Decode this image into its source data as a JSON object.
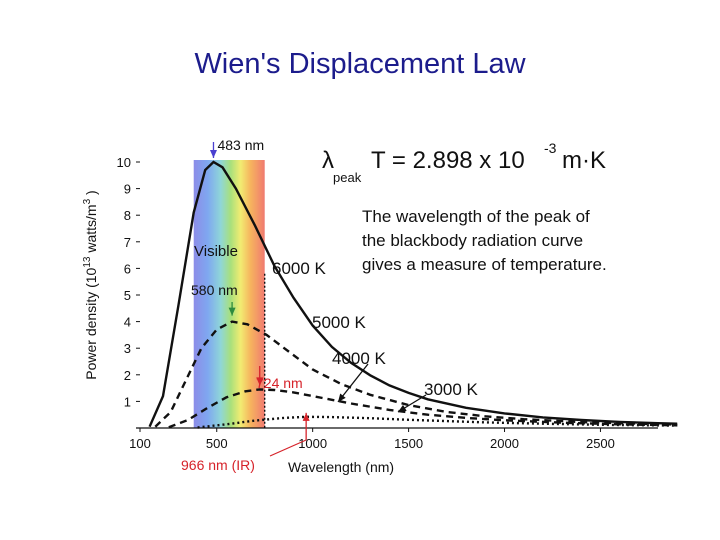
{
  "slide": {
    "title": "Wien's Displacement Law"
  },
  "colors": {
    "title": "#1c1c8c",
    "curve": "#111111",
    "peak_arrow": "#4a3fd0",
    "green_arrow": "#2e8b3e",
    "red_marker": "#d6232a"
  },
  "formula": {
    "lambda": "λ",
    "subscript": "peak",
    "equation": "T = 2.898  x 10",
    "exponent": "-3",
    "unit": "m·K"
  },
  "annotation": {
    "lines": [
      "The wavelength of the peak of",
      "the blackbody radiation curve",
      "gives a measure of temperature."
    ]
  },
  "chart_data": {
    "type": "line",
    "xlabel": "Wavelength (nm)",
    "ylabel": "Power density (10",
    "ylabel_sup": "13",
    "ylabel_mid": " watts/m",
    "ylabel_sup2": "3",
    "ylabel_end": " )",
    "x_ticks": [
      100,
      500,
      1000,
      1500,
      2000,
      2500
    ],
    "y_ticks": [
      1,
      2,
      3,
      4,
      5,
      6,
      7,
      8,
      9,
      10
    ],
    "xlim": [
      100,
      2900
    ],
    "ylim": [
      0,
      10.5
    ],
    "visible_band_label": "Visible",
    "visible_band_nm": [
      380,
      750
    ],
    "series": [
      {
        "name": "6000 K",
        "style": "solid",
        "peak_label": "483 nm",
        "peak_nm": 483,
        "points": [
          [
            150,
            0.05
          ],
          [
            220,
            1.2
          ],
          [
            300,
            4.6
          ],
          [
            380,
            8.1
          ],
          [
            440,
            9.7
          ],
          [
            483,
            10.0
          ],
          [
            530,
            9.8
          ],
          [
            600,
            9.0
          ],
          [
            700,
            7.6
          ],
          [
            800,
            6.1
          ],
          [
            900,
            4.9
          ],
          [
            1000,
            3.85
          ],
          [
            1100,
            3.05
          ],
          [
            1200,
            2.45
          ],
          [
            1300,
            1.98
          ],
          [
            1400,
            1.6
          ],
          [
            1500,
            1.32
          ],
          [
            1600,
            1.08
          ],
          [
            1800,
            0.76
          ],
          [
            2000,
            0.55
          ],
          [
            2200,
            0.4
          ],
          [
            2400,
            0.3
          ],
          [
            2600,
            0.23
          ],
          [
            2800,
            0.18
          ],
          [
            2900,
            0.16
          ]
        ]
      },
      {
        "name": "5000 K",
        "style": "dash",
        "peak_label": "580 nm",
        "peak_nm": 580,
        "points": [
          [
            180,
            0.05
          ],
          [
            260,
            0.6
          ],
          [
            340,
            1.8
          ],
          [
            420,
            3.0
          ],
          [
            500,
            3.7
          ],
          [
            580,
            4.0
          ],
          [
            660,
            3.9
          ],
          [
            760,
            3.5
          ],
          [
            880,
            2.85
          ],
          [
            1000,
            2.2
          ],
          [
            1150,
            1.65
          ],
          [
            1300,
            1.25
          ],
          [
            1500,
            0.86
          ],
          [
            1700,
            0.6
          ],
          [
            1900,
            0.44
          ],
          [
            2100,
            0.33
          ],
          [
            2400,
            0.22
          ],
          [
            2700,
            0.16
          ],
          [
            2900,
            0.13
          ]
        ]
      },
      {
        "name": "4000 K",
        "style": "dash",
        "peak_label": "724 nm",
        "peak_nm": 724,
        "points": [
          [
            250,
            0.03
          ],
          [
            350,
            0.3
          ],
          [
            450,
            0.75
          ],
          [
            550,
            1.15
          ],
          [
            650,
            1.38
          ],
          [
            724,
            1.45
          ],
          [
            800,
            1.43
          ],
          [
            900,
            1.34
          ],
          [
            1000,
            1.2
          ],
          [
            1200,
            0.92
          ],
          [
            1400,
            0.68
          ],
          [
            1600,
            0.5
          ],
          [
            1800,
            0.38
          ],
          [
            2000,
            0.29
          ],
          [
            2300,
            0.2
          ],
          [
            2600,
            0.14
          ],
          [
            2900,
            0.1
          ]
        ]
      },
      {
        "name": "3000 K",
        "style": "dot",
        "peak_label": "966 nm (IR)",
        "peak_nm": 966,
        "points": [
          [
            400,
            0.02
          ],
          [
            550,
            0.14
          ],
          [
            700,
            0.28
          ],
          [
            850,
            0.38
          ],
          [
            966,
            0.42
          ],
          [
            1100,
            0.41
          ],
          [
            1300,
            0.37
          ],
          [
            1500,
            0.31
          ],
          [
            1700,
            0.26
          ],
          [
            1900,
            0.21
          ],
          [
            2200,
            0.16
          ],
          [
            2500,
            0.12
          ],
          [
            2900,
            0.09
          ]
        ]
      }
    ]
  }
}
